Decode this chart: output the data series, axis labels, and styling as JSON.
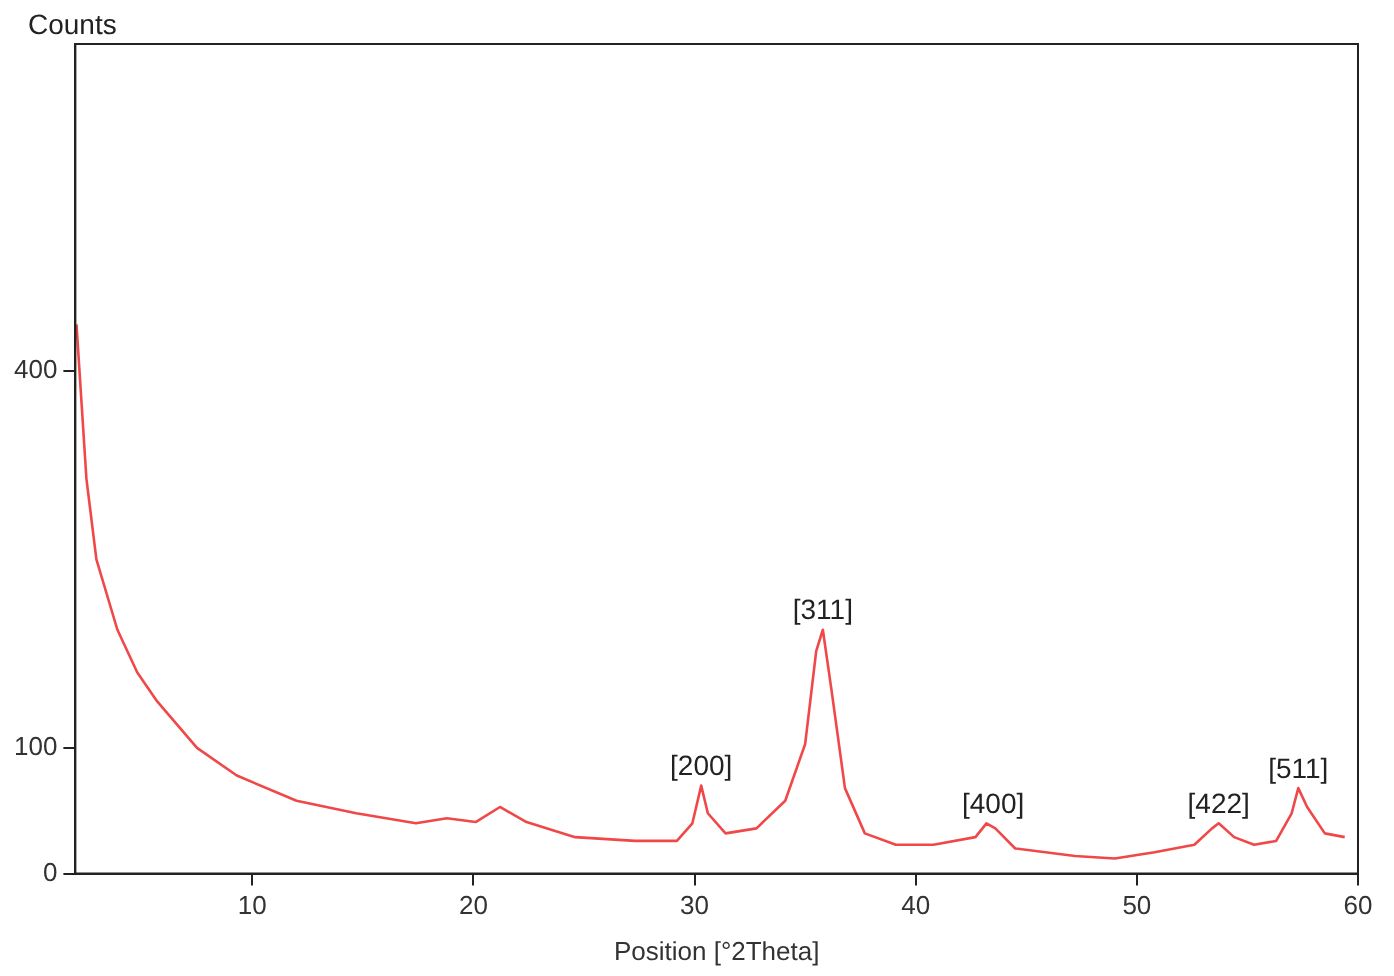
{
  "chart_data": {
    "type": "line",
    "xlabel": "Position [°2Theta]",
    "ylabel": "Counts",
    "xlim": [
      2,
      60
    ],
    "xticks": [
      10,
      20,
      30,
      40,
      50,
      60
    ],
    "ylim": [
      0,
      660
    ],
    "yticks": [
      0,
      100,
      400
    ],
    "grid": false,
    "legend": false,
    "marker": "none",
    "line_style": "solid",
    "series": [
      {
        "color": "#f04848",
        "x": [
          2.05,
          2.5,
          2.95,
          3.9,
          4.8,
          5.7,
          7.5,
          9.3,
          12,
          14.7,
          17.4,
          18.8,
          20.1,
          21.2,
          22.4,
          24.6,
          27.3,
          29.2,
          29.9,
          30.3,
          30.6,
          31.4,
          32.8,
          34.1,
          35.0,
          35.5,
          35.8,
          36.2,
          36.8,
          37.7,
          39.1,
          40.8,
          42.7,
          43.2,
          43.6,
          44.5,
          47.2,
          49.0,
          50.8,
          52.6,
          53.4,
          53.7,
          54.4,
          55.3,
          56.3,
          57.0,
          57.3,
          57.7,
          58.5,
          59.4
        ],
        "values": [
          437,
          314,
          250,
          194,
          160,
          137,
          100,
          78,
          58,
          48,
          40,
          44,
          41,
          53,
          41,
          29,
          26,
          26,
          40,
          70,
          48,
          32,
          36,
          58,
          103,
          177,
          194,
          145,
          68,
          32,
          23,
          23,
          29,
          40,
          36,
          20,
          14,
          12,
          17,
          23,
          36,
          40,
          29,
          23,
          26,
          48,
          68,
          53,
          32,
          29
        ]
      }
    ],
    "annotations": [
      {
        "text": "[200]",
        "x": 30.3,
        "y": 70
      },
      {
        "text": "[311]",
        "x": 35.8,
        "y": 194
      },
      {
        "text": "[400]",
        "x": 43.5,
        "y": 40
      },
      {
        "text": "[422]",
        "x": 53.7,
        "y": 40
      },
      {
        "text": "[511]",
        "x": 57.3,
        "y": 68
      }
    ]
  }
}
